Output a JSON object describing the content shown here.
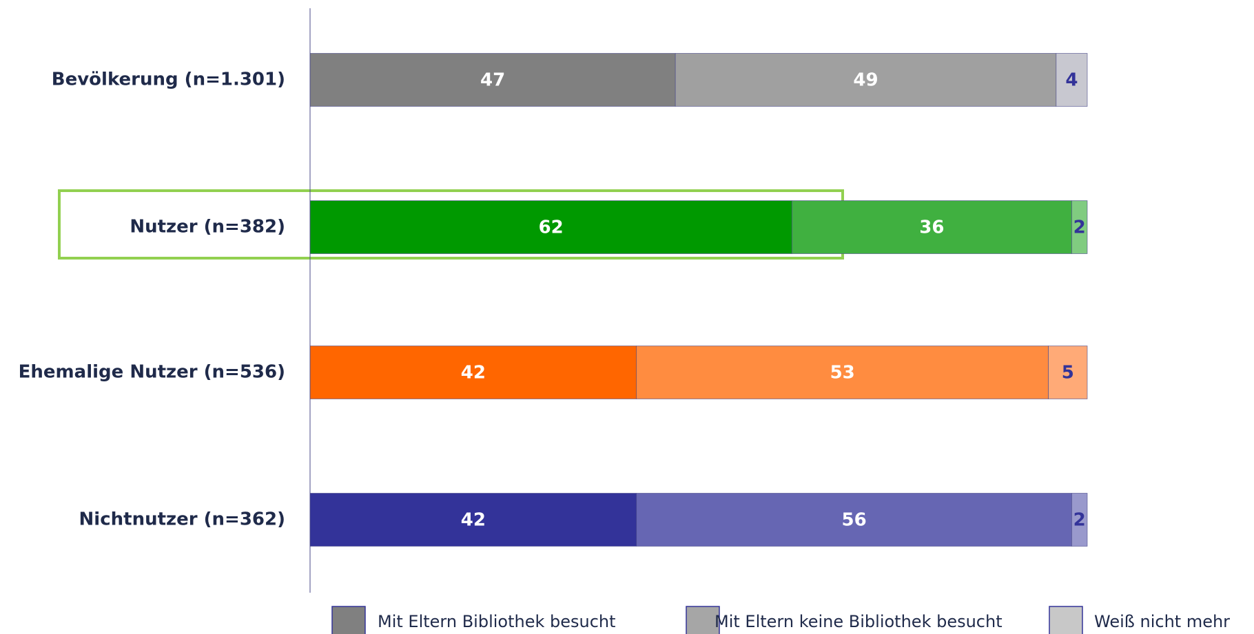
{
  "chart_data": {
    "type": "stacked_bar_horizontal",
    "categories": [
      "Bevölkerung (n=1.301)",
      "Nutzer (n=382)",
      "Ehemalige Nutzer (n=536)",
      "Nichtnutzer (n=362)"
    ],
    "series": [
      {
        "name": "Mit Eltern Bibliothek besucht",
        "color": "#808080",
        "values": [
          47,
          62,
          42,
          42
        ]
      },
      {
        "name": "Mit Eltern keine Bibliothek besucht",
        "color": "#a6a6a6",
        "values": [
          49,
          36,
          53,
          56
        ]
      },
      {
        "name": "Weiß nicht mehr",
        "color": "#c8c8c8",
        "values": [
          4,
          2,
          5,
          2
        ]
      }
    ],
    "bar_colors": [
      [
        "#808080",
        "#a0a0a0",
        "#c8c8d0"
      ],
      [
        "#009900",
        "#40b040",
        "#80cc80"
      ],
      [
        "#ff6600",
        "#ff8c40",
        "#ffaa77"
      ],
      [
        "#333399",
        "#6666b3",
        "#9999cc"
      ]
    ],
    "xlim": [
      0,
      100
    ]
  }
}
